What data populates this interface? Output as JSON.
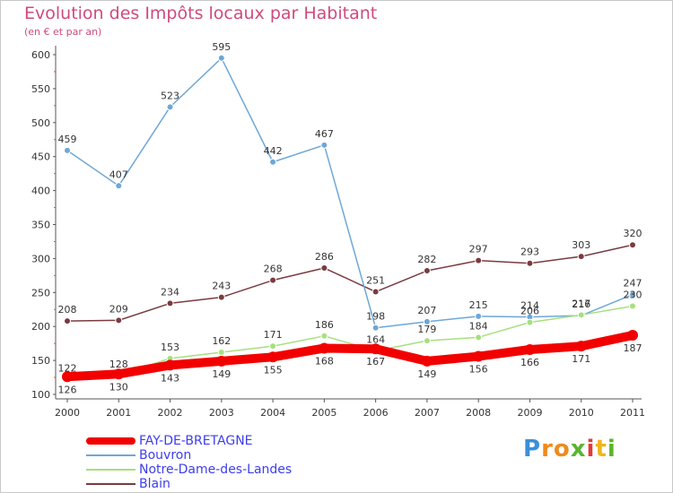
{
  "header": {
    "title": "Evolution des Impôts locaux par Habitant",
    "subtitle": "(en € et par an)"
  },
  "logo": {
    "text": "Proxiti",
    "letters": [
      "P",
      "r",
      "o",
      "x",
      "i",
      "t",
      "i"
    ],
    "colors": [
      "#3b8fd9",
      "#f08a1c",
      "#f08a1c",
      "#5ab52e",
      "#e33b3b",
      "#f0b51c",
      "#5ab52e"
    ]
  },
  "chart_data": {
    "type": "line",
    "title": "Evolution des Impôts locaux par Habitant",
    "subtitle": "(en € et par an)",
    "x": [
      "2000",
      "2001",
      "2002",
      "2003",
      "2004",
      "2005",
      "2006",
      "2007",
      "2008",
      "2009",
      "2010",
      "2011"
    ],
    "ylim": [
      100,
      600
    ],
    "yticks": [
      100,
      150,
      200,
      250,
      300,
      350,
      400,
      450,
      500,
      550,
      600
    ],
    "grid": false,
    "legend_position": "bottom-left",
    "series": [
      {
        "name": "FAY-DE-BRETAGNE",
        "color": "#f20000",
        "values": [
          126,
          130,
          143,
          149,
          155,
          168,
          167,
          149,
          156,
          166,
          171,
          187
        ],
        "labels": [
          "126",
          "130",
          "143",
          "149",
          "155",
          "168",
          "167",
          "149",
          "156",
          "166",
          "171",
          "187"
        ]
      },
      {
        "name": "Bouvron",
        "color": "#6fa7d6",
        "values": [
          459,
          407,
          523,
          595,
          442,
          467,
          198,
          207,
          215,
          214,
          216,
          247
        ],
        "labels": [
          "459",
          "407",
          "523",
          "595",
          "442",
          "467",
          "198",
          "207",
          "215",
          "214",
          "216",
          "247"
        ]
      },
      {
        "name": "Notre-Dame-des-Landes",
        "color": "#a5e07f",
        "values": [
          122,
          128,
          153,
          162,
          171,
          186,
          164,
          179,
          184,
          206,
          217,
          230
        ],
        "labels": [
          "122",
          "128",
          "153",
          "162",
          "171",
          "186",
          "164",
          "179",
          "184",
          "206",
          "217",
          "230"
        ]
      },
      {
        "name": "Blain",
        "color": "#7a3b40",
        "values": [
          208,
          209,
          234,
          243,
          268,
          286,
          251,
          282,
          297,
          293,
          303,
          320
        ],
        "labels": [
          "208",
          "209",
          "234",
          "243",
          "268",
          "286",
          "251",
          "282",
          "297",
          "293",
          "303",
          "320"
        ]
      }
    ]
  }
}
